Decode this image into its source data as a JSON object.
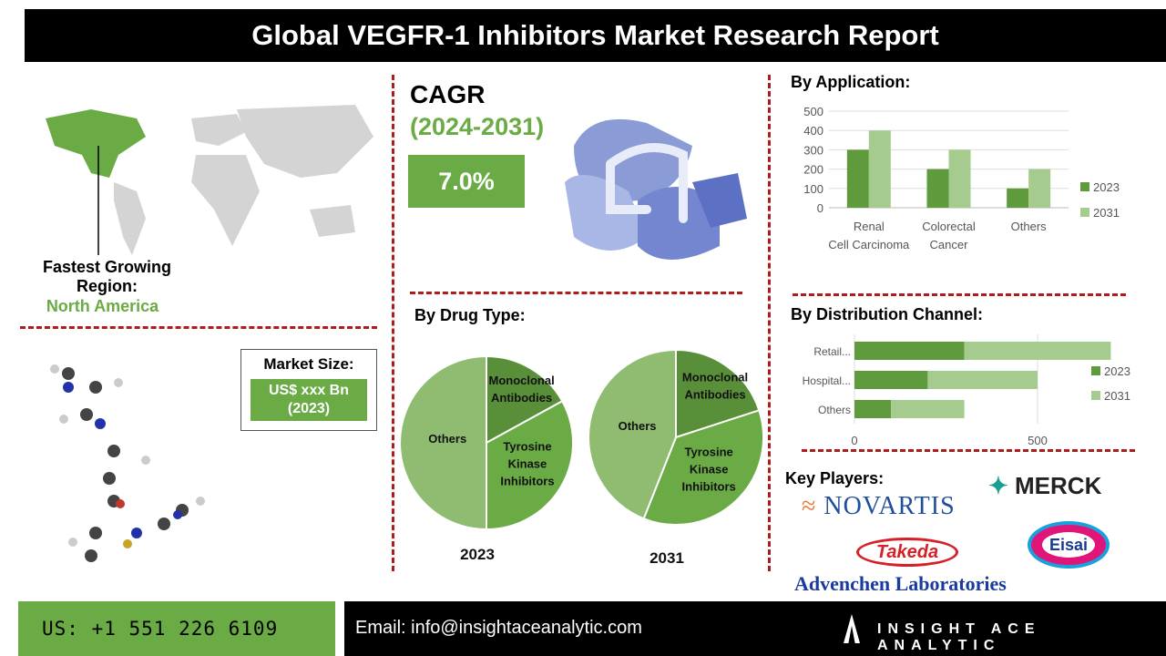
{
  "title": "Global VEGFR-1 Inhibitors Market Research Report",
  "region": {
    "label": "Fastest Growing Region:",
    "value": "North America"
  },
  "cagr": {
    "label": "CAGR",
    "period": "(2024-2031)",
    "value": "7.0%"
  },
  "market_size": {
    "label": "Market Size:",
    "value": "US$ xxx Bn (2023)"
  },
  "sections": {
    "application": "By Application:",
    "drug_type": "By Drug Type:",
    "distribution": "By  Distribution Channel:",
    "key_players": "Key Players:"
  },
  "key_players": [
    "NOVARTIS",
    "MERCK",
    "Takeda",
    "Eisai",
    "Advenchen Laboratories"
  ],
  "footer": {
    "phone": "US: +1 551 226 6109",
    "email": "Email: info@insightaceanalytic.com",
    "brand": "INSIGHT ACE ANALYTIC"
  },
  "colors": {
    "series_2023": "#5f9a3d",
    "series_2031": "#a5cc8e",
    "accent": "#6aab45",
    "divider": "#b01c1c"
  },
  "chart_data": [
    {
      "type": "bar",
      "categories": [
        "Renal Cell Carcinoma",
        "Colorectal Cancer",
        "Others"
      ],
      "series": [
        {
          "name": "2023",
          "values": [
            300,
            200,
            100
          ]
        },
        {
          "name": "2031",
          "values": [
            400,
            300,
            200
          ]
        }
      ],
      "ylim": [
        0,
        500
      ],
      "yticks": [
        0,
        100,
        200,
        300,
        400,
        500
      ],
      "grid": true,
      "legend": "right"
    },
    {
      "type": "pie",
      "title": "2023",
      "labels": [
        "Monoclonal Antibodies",
        "Tyrosine Kinase Inhibitors",
        "Others"
      ],
      "values": [
        17,
        33,
        50
      ]
    },
    {
      "type": "pie",
      "title": "2031",
      "labels": [
        "Monoclonal Antibodies",
        "Tyrosine Kinase Inhibitors",
        "Others"
      ],
      "values": [
        20,
        36,
        44
      ]
    },
    {
      "type": "bar",
      "orientation": "horizontal",
      "stacked": true,
      "categories": [
        "Retail...",
        "Hospital...",
        "Others"
      ],
      "series": [
        {
          "name": "2023",
          "values": [
            300,
            200,
            100
          ]
        },
        {
          "name": "2031",
          "values": [
            400,
            300,
            200
          ]
        }
      ],
      "xlim": [
        0,
        1000
      ],
      "xticks": [
        0,
        500,
        1000
      ],
      "grid": true,
      "legend": "right"
    }
  ]
}
